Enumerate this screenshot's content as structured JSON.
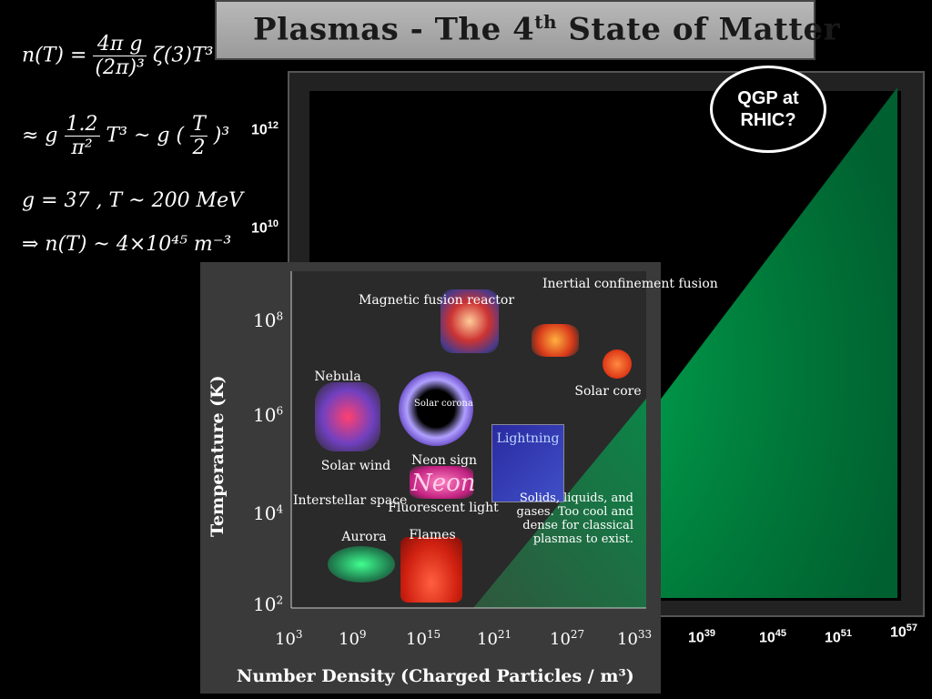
{
  "title": {
    "main": "Plasmas - The 4",
    "sup": "th",
    "rest": " State of Matter"
  },
  "equations": {
    "line1": {
      "lhs": "n(T) = ",
      "num": "4π g",
      "den": "(2π)³",
      "rhs": "ζ(3)T³"
    },
    "line2": {
      "pre": "≈ g ",
      "num": "1.2",
      "den": "π²",
      "mid": "T³ ~ g (",
      "num2": "T",
      "den2": "2",
      "post": ")³"
    },
    "line3": "g = 37 , T ~ 200 MeV",
    "line4": "⇒ n(T) ~ 4×10⁴⁵ m⁻³"
  },
  "outer_chart": {
    "y_ticks": [
      {
        "base": "10",
        "exp": "12"
      },
      {
        "base": "10",
        "exp": "10"
      }
    ],
    "x_ticks": [
      {
        "base": "10",
        "exp": "39"
      },
      {
        "base": "10",
        "exp": "45"
      },
      {
        "base": "10",
        "exp": "51"
      },
      {
        "base": "10",
        "exp": "57"
      }
    ],
    "annotation": "QGP at RHIC?",
    "accent_color": "#009a4e"
  },
  "inner_chart": {
    "y_label": "Temperature (K)",
    "x_label": "Number Density (Charged Particles / m³)",
    "y_ticks": [
      {
        "base": "10",
        "exp": "8"
      },
      {
        "base": "10",
        "exp": "6"
      },
      {
        "base": "10",
        "exp": "4"
      },
      {
        "base": "10",
        "exp": "2"
      }
    ],
    "x_ticks": [
      {
        "base": "10",
        "exp": "3"
      },
      {
        "base": "10",
        "exp": "9"
      },
      {
        "base": "10",
        "exp": "15"
      },
      {
        "base": "10",
        "exp": "21"
      },
      {
        "base": "10",
        "exp": "27"
      },
      {
        "base": "10",
        "exp": "33"
      }
    ],
    "labels": {
      "magnetic_fusion": "Magnetic fusion reactor",
      "inertial_confinement": "Inertial confinement fusion",
      "nebula": "Nebula",
      "solar_corona": "Solar corona",
      "solar_core": "Solar core",
      "solar_wind": "Solar wind",
      "neon_sign": "Neon sign",
      "neon_word": "Neon",
      "lightning": "Lightning",
      "interstellar": "Interstellar space",
      "fluorescent": "Fluorescent light",
      "aurora": "Aurora",
      "flames": "Flames",
      "solids": "Solids, liquids, and gases. Too cool and dense for classical plasmas to exist."
    }
  }
}
